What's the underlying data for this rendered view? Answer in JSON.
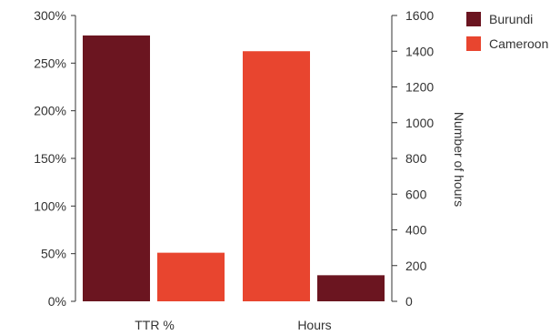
{
  "chart_data": {
    "type": "bar",
    "categories": [
      "TTR %",
      "Hours"
    ],
    "series": [
      {
        "name": "Burundi",
        "color": "#6b1520",
        "values": [
          279,
          146
        ]
      },
      {
        "name": "Cameroon",
        "color": "#e8452f",
        "values": [
          51,
          1400
        ]
      }
    ],
    "category_axis": [
      "left",
      "right"
    ],
    "y_left": {
      "ylim": [
        0,
        300
      ],
      "ticks": [
        0,
        50,
        100,
        150,
        200,
        250,
        300
      ],
      "tick_labels": [
        "0%",
        "50%",
        "100%",
        "150%",
        "200%",
        "250%",
        "300%"
      ],
      "label": ""
    },
    "y_right": {
      "ylim": [
        0,
        1600
      ],
      "ticks": [
        0,
        200,
        400,
        600,
        800,
        1000,
        1200,
        1400,
        1600
      ],
      "tick_labels": [
        "0",
        "200",
        "400",
        "600",
        "800",
        "1000",
        "1200",
        "1400",
        "1600"
      ],
      "label": "Number of hours"
    },
    "legend": {
      "position": "top-right",
      "items": [
        "Burundi",
        "Cameroon"
      ]
    },
    "grid": false
  }
}
